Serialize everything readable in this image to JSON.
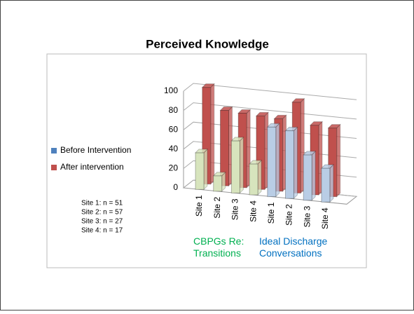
{
  "chart_data": {
    "type": "bar3d",
    "title": "Perceived Knowledge",
    "categories": [
      "Site 1",
      "Site 2",
      "Site 3",
      "Site 4",
      "Site 1",
      "Site 2",
      "Site 3",
      "Site 4"
    ],
    "series": [
      {
        "name": "Before Intervention",
        "color": "#4f81bd",
        "point_colors": [
          "#d7e4bd",
          "#d7e4bd",
          "#d7e4bd",
          "#d7e4bd",
          "#b9cde5",
          "#b9cde5",
          "#b9cde5",
          "#b9cde5"
        ],
        "values": [
          38,
          16,
          54,
          32,
          72,
          70,
          47,
          35
        ]
      },
      {
        "name": "After intervention",
        "color": "#c0504d",
        "values": [
          100,
          78,
          77,
          76,
          75,
          94,
          72,
          71
        ]
      }
    ],
    "ylim": [
      0,
      100
    ],
    "yticks": [
      0,
      20,
      40,
      60,
      80,
      100
    ],
    "grid": true,
    "groups": [
      {
        "label": "CBPGs Re: Transitions",
        "color": "#00b050"
      },
      {
        "label": "Ideal Discharge Conversations",
        "color": "#0070c0"
      }
    ],
    "notes": [
      "Site 1: n = 51",
      "Site 2: n = 57",
      "Site 3: n = 27",
      "Site 4: n = 17"
    ]
  }
}
